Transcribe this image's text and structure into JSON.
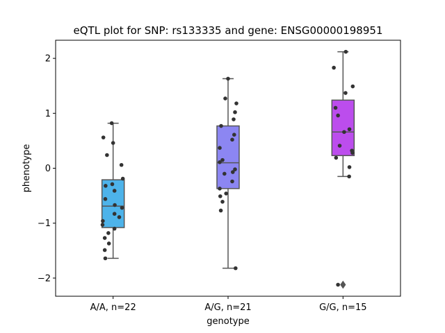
{
  "chart_data": {
    "type": "box",
    "title": "eQTL plot for SNP: rs133335 and gene: ENSG00000198951",
    "xlabel": "genotype",
    "ylabel": "phenotype",
    "ylim": [
      -2.33,
      2.33
    ],
    "yticks": [
      -2,
      -1,
      0,
      1,
      2
    ],
    "ytick_labels": [
      "−2",
      "−1",
      "0",
      "1",
      "2"
    ],
    "grid": false,
    "categories": [
      "A/A, n=22",
      "A/G, n=21",
      "G/G, n=15"
    ],
    "boxes": [
      {
        "category": "A/A, n=22",
        "color": "#4db3ea",
        "whisker_low": -1.64,
        "q1": -1.08,
        "median": -0.69,
        "q3": -0.21,
        "whisker_high": 0.82,
        "outliers": [],
        "points": [
          {
            "x": -0.05,
            "y": 0.82
          },
          {
            "x": -0.35,
            "y": 0.56
          },
          {
            "x": 0.0,
            "y": 0.46
          },
          {
            "x": -0.22,
            "y": 0.24
          },
          {
            "x": 0.3,
            "y": 0.06
          },
          {
            "x": 0.35,
            "y": -0.19
          },
          {
            "x": -0.03,
            "y": -0.29
          },
          {
            "x": -0.27,
            "y": -0.32
          },
          {
            "x": 0.05,
            "y": -0.41
          },
          {
            "x": -0.28,
            "y": -0.56
          },
          {
            "x": 0.06,
            "y": -0.67
          },
          {
            "x": 0.32,
            "y": -0.72
          },
          {
            "x": 0.05,
            "y": -0.83
          },
          {
            "x": 0.22,
            "y": -0.89
          },
          {
            "x": -0.37,
            "y": -0.96
          },
          {
            "x": -0.38,
            "y": -1.03
          },
          {
            "x": 0.05,
            "y": -1.1
          },
          {
            "x": -0.17,
            "y": -1.18
          },
          {
            "x": -0.3,
            "y": -1.27
          },
          {
            "x": -0.15,
            "y": -1.37
          },
          {
            "x": -0.3,
            "y": -1.49
          },
          {
            "x": -0.28,
            "y": -1.64
          }
        ]
      },
      {
        "category": "A/G, n=21",
        "color": "#8c86f2",
        "whisker_low": -1.82,
        "q1": -0.37,
        "median": 0.1,
        "q3": 0.77,
        "whisker_high": 1.63,
        "outliers": [],
        "points": [
          {
            "x": 0.0,
            "y": 1.63
          },
          {
            "x": -0.1,
            "y": 1.27
          },
          {
            "x": 0.3,
            "y": 1.18
          },
          {
            "x": 0.25,
            "y": 1.02
          },
          {
            "x": 0.2,
            "y": 0.89
          },
          {
            "x": -0.25,
            "y": 0.77
          },
          {
            "x": 0.22,
            "y": 0.61
          },
          {
            "x": 0.15,
            "y": 0.52
          },
          {
            "x": -0.3,
            "y": 0.37
          },
          {
            "x": -0.2,
            "y": 0.15
          },
          {
            "x": -0.3,
            "y": 0.11
          },
          {
            "x": 0.25,
            "y": -0.02
          },
          {
            "x": 0.17,
            "y": -0.07
          },
          {
            "x": -0.13,
            "y": -0.1
          },
          {
            "x": 0.15,
            "y": -0.24
          },
          {
            "x": -0.3,
            "y": -0.37
          },
          {
            "x": -0.07,
            "y": -0.46
          },
          {
            "x": -0.28,
            "y": -0.51
          },
          {
            "x": -0.2,
            "y": -0.61
          },
          {
            "x": -0.26,
            "y": -0.77
          },
          {
            "x": 0.27,
            "y": -1.82
          }
        ]
      },
      {
        "category": "G/G, n=15",
        "color": "#bc4ded",
        "whisker_low": -0.15,
        "q1": 0.23,
        "median": 0.66,
        "q3": 1.24,
        "whisker_high": 2.12,
        "outliers": [
          -2.12
        ],
        "points": [
          {
            "x": 0.1,
            "y": 2.12
          },
          {
            "x": -0.33,
            "y": 1.83
          },
          {
            "x": 0.35,
            "y": 1.49
          },
          {
            "x": 0.09,
            "y": 1.37
          },
          {
            "x": -0.27,
            "y": 1.1
          },
          {
            "x": -0.18,
            "y": 0.96
          },
          {
            "x": 0.23,
            "y": 0.71
          },
          {
            "x": 0.04,
            "y": 0.66
          },
          {
            "x": -0.12,
            "y": 0.41
          },
          {
            "x": 0.32,
            "y": 0.32
          },
          {
            "x": 0.34,
            "y": 0.28
          },
          {
            "x": -0.25,
            "y": 0.19
          },
          {
            "x": 0.23,
            "y": 0.02
          },
          {
            "x": 0.22,
            "y": -0.15
          },
          {
            "x": -0.18,
            "y": -2.12
          }
        ]
      }
    ]
  }
}
